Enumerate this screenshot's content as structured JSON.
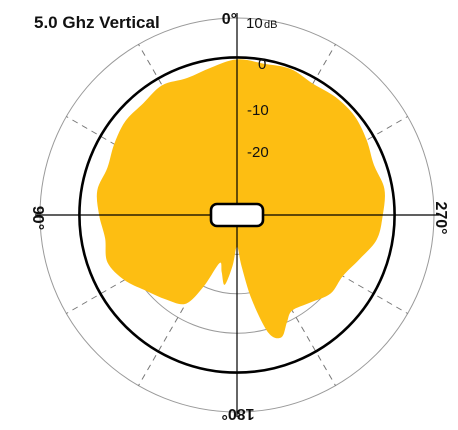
{
  "chart_data": {
    "type": "polar",
    "title": "5.0 Ghz Vertical",
    "unit": "dB",
    "radial_ticks": [
      "10",
      "0",
      "-10",
      "-20"
    ],
    "angle_labels": [
      "0°",
      "90°",
      "180°",
      "270°"
    ],
    "rlim": [
      -40,
      10
    ],
    "reference_level_dB": 0,
    "pattern_color": "#FDBE12",
    "series": [
      {
        "angles_deg": [
          0,
          10,
          20,
          30,
          40,
          50,
          60,
          70,
          80,
          90,
          100,
          110,
          120,
          130,
          140,
          150,
          155,
          160,
          165,
          170,
          175,
          180,
          185,
          190,
          195,
          200,
          205,
          210,
          220,
          230,
          240,
          250,
          260,
          270,
          280,
          290,
          300,
          310,
          320,
          330,
          340,
          350
        ],
        "gain_dB": [
          -0.5,
          -2,
          -3,
          -2,
          -3,
          -3,
          -4,
          -5,
          -4,
          -5,
          -6,
          -5,
          -7,
          -10,
          -12,
          -14,
          -20,
          -27,
          -25,
          -22,
          -27,
          -32,
          -27,
          -18,
          -9,
          -7,
          -10,
          -12,
          -11,
          -9,
          -9,
          -7,
          -4,
          -3,
          -2,
          -3,
          -2,
          -1,
          -1,
          -1.5,
          -0.5,
          -1
        ]
      }
    ]
  }
}
